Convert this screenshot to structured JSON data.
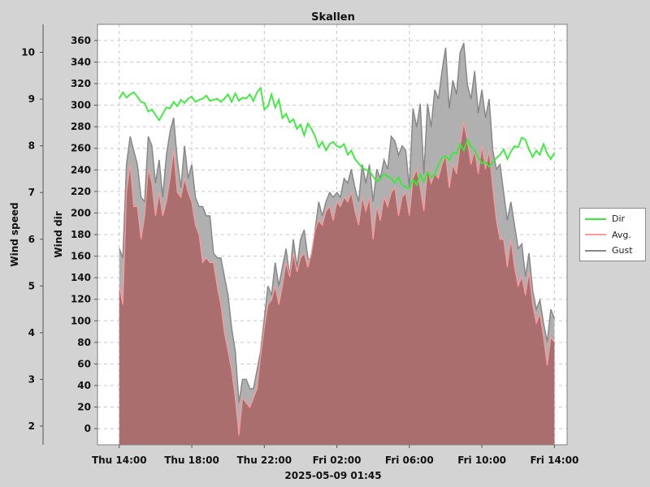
{
  "chart_data": {
    "type": "area",
    "title": "Skallen",
    "subtitle": "2025-05-09 01:45",
    "left_axis_label": "Wind speed",
    "right_axis_label": "Wind dir",
    "speed_ticks": [
      2,
      3,
      4,
      5,
      6,
      7,
      8,
      9,
      10
    ],
    "speed_ylim": [
      1.6,
      10.6
    ],
    "dir_ticks": [
      0,
      20,
      40,
      60,
      80,
      100,
      120,
      140,
      160,
      180,
      200,
      220,
      240,
      260,
      280,
      300,
      320,
      340,
      360
    ],
    "dir_ylim": [
      -15,
      375
    ],
    "x_ticks": [
      "Thu 14:00",
      "Thu 18:00",
      "Thu 22:00",
      "Fri 02:00",
      "Fri 06:00",
      "Fri 10:00",
      "Fri 14:00"
    ],
    "x_tick_hours": [
      0,
      4,
      8,
      12,
      16,
      20,
      24
    ],
    "x_range_hours": [
      -1.2,
      24.7
    ],
    "grid": true,
    "legend_position": "right",
    "colors": {
      "dir": "#33ee33",
      "avg": "#ff9999",
      "avg_fill": "#aa6e6e",
      "gust": "#888888",
      "gust_fill": "#b0b0b0"
    },
    "series": [
      {
        "name": "Dir",
        "x": [
          0.0,
          0.2,
          0.4,
          0.6,
          0.8,
          1.0,
          1.2,
          1.4,
          1.6,
          1.8,
          2.0,
          2.2,
          2.4,
          2.6,
          2.8,
          3.0,
          3.2,
          3.4,
          3.6,
          3.8,
          4.0,
          4.2,
          4.4,
          4.6,
          4.8,
          5.0,
          5.2,
          5.4,
          5.6,
          5.8,
          6.0,
          6.2,
          6.4,
          6.6,
          6.8,
          7.0,
          7.2,
          7.4,
          7.6,
          7.8,
          8.0,
          8.2,
          8.4,
          8.6,
          8.8,
          9.0,
          9.2,
          9.4,
          9.6,
          9.8,
          10.0,
          10.2,
          10.4,
          10.6,
          10.8,
          11.0,
          11.2,
          11.4,
          11.6,
          11.8,
          12.0,
          12.2,
          12.4,
          12.6,
          12.8,
          13.0,
          13.2,
          13.4,
          13.6,
          13.8,
          14.0,
          14.2,
          14.4,
          14.6,
          14.8,
          15.0,
          15.2,
          15.4,
          15.6,
          15.8,
          16.0,
          16.2,
          16.4,
          16.6,
          16.8,
          17.0,
          17.2,
          17.4,
          17.6,
          17.8,
          18.0,
          18.2,
          18.4,
          18.6,
          18.8,
          19.0,
          19.2,
          19.4,
          19.6,
          19.8,
          20.0,
          20.2,
          20.4,
          20.6,
          20.8,
          21.0,
          21.2,
          21.4,
          21.6,
          21.8,
          22.0,
          22.2,
          22.4,
          22.6,
          22.8,
          23.0,
          23.2,
          23.4,
          23.6,
          23.8,
          24.0
        ],
        "values": [
          306,
          312,
          307,
          310,
          312,
          308,
          303,
          302,
          294,
          296,
          291,
          286,
          292,
          298,
          297,
          303,
          299,
          305,
          302,
          306,
          308,
          303,
          305,
          306,
          309,
          304,
          305,
          306,
          303,
          306,
          310,
          303,
          311,
          304,
          307,
          306,
          310,
          304,
          312,
          316,
          296,
          299,
          310,
          298,
          305,
          288,
          292,
          284,
          287,
          278,
          282,
          272,
          283,
          278,
          271,
          261,
          266,
          258,
          264,
          266,
          262,
          261,
          264,
          254,
          258,
          250,
          246,
          242,
          240,
          239,
          234,
          229,
          232,
          236,
          234,
          232,
          228,
          233,
          226,
          224,
          223,
          231,
          226,
          236,
          229,
          238,
          233,
          236,
          245,
          251,
          253,
          249,
          256,
          255,
          264,
          258,
          268,
          262,
          258,
          252,
          246,
          247,
          243,
          247,
          251,
          254,
          259,
          250,
          257,
          262,
          261,
          270,
          268,
          259,
          252,
          258,
          254,
          264,
          255,
          250,
          256
        ],
        "units": "degrees"
      },
      {
        "name": "Avg.",
        "x": [
          0.0,
          0.2,
          0.4,
          0.6,
          0.8,
          1.0,
          1.2,
          1.4,
          1.6,
          1.8,
          2.0,
          2.2,
          2.4,
          2.6,
          2.8,
          3.0,
          3.2,
          3.4,
          3.6,
          3.8,
          4.0,
          4.2,
          4.4,
          4.6,
          4.8,
          5.0,
          5.2,
          5.4,
          5.6,
          5.8,
          6.0,
          6.2,
          6.4,
          6.6,
          6.8,
          7.0,
          7.2,
          7.4,
          7.6,
          7.8,
          8.0,
          8.2,
          8.4,
          8.6,
          8.8,
          9.0,
          9.2,
          9.4,
          9.6,
          9.8,
          10.0,
          10.2,
          10.4,
          10.6,
          10.8,
          11.0,
          11.2,
          11.4,
          11.6,
          11.8,
          12.0,
          12.2,
          12.4,
          12.6,
          12.8,
          13.0,
          13.2,
          13.4,
          13.6,
          13.8,
          14.0,
          14.2,
          14.4,
          14.6,
          14.8,
          15.0,
          15.2,
          15.4,
          15.6,
          15.8,
          16.0,
          16.2,
          16.4,
          16.6,
          16.8,
          17.0,
          17.2,
          17.4,
          17.6,
          17.8,
          18.0,
          18.2,
          18.4,
          18.6,
          18.8,
          19.0,
          19.2,
          19.4,
          19.6,
          19.8,
          20.0,
          20.2,
          20.4,
          20.6,
          20.8,
          21.0,
          21.2,
          21.4,
          21.6,
          21.8,
          22.0,
          22.2,
          22.4,
          22.6,
          22.8,
          23.0,
          23.2,
          23.4,
          23.6,
          23.8,
          24.0
        ],
        "values": [
          5.0,
          4.6,
          7.0,
          7.6,
          6.7,
          6.7,
          6.0,
          6.5,
          7.5,
          7.2,
          6.5,
          7.0,
          6.5,
          6.8,
          7.3,
          7.9,
          7.0,
          6.9,
          7.3,
          7.0,
          6.8,
          6.3,
          6.1,
          5.5,
          5.6,
          5.5,
          5.5,
          5.0,
          4.6,
          4.0,
          3.6,
          3.2,
          2.6,
          1.8,
          2.6,
          2.5,
          2.4,
          2.6,
          2.8,
          3.5,
          4.1,
          4.6,
          4.7,
          5.0,
          4.6,
          5.0,
          5.5,
          5.2,
          5.7,
          5.3,
          5.6,
          5.7,
          5.4,
          5.7,
          6.2,
          6.4,
          6.3,
          6.6,
          6.7,
          6.4,
          6.8,
          6.7,
          6.9,
          6.8,
          7.0,
          6.6,
          6.3,
          6.9,
          6.6,
          6.9,
          6.0,
          6.7,
          6.4,
          6.9,
          6.7,
          7.0,
          7.1,
          6.5,
          6.9,
          7.0,
          6.5,
          7.3,
          7.5,
          7.1,
          6.6,
          7.5,
          7.2,
          7.4,
          7.3,
          7.6,
          7.8,
          7.1,
          7.6,
          7.4,
          8.0,
          8.5,
          8.1,
          7.6,
          7.9,
          7.4,
          8.0,
          7.5,
          7.9,
          7.1,
          6.4,
          6.0,
          6.0,
          5.4,
          6.0,
          5.4,
          5.0,
          5.2,
          4.8,
          5.3,
          4.6,
          4.2,
          4.4,
          3.9,
          3.3,
          3.9,
          3.8
        ],
        "units": "wind speed"
      },
      {
        "name": "Gust",
        "x": [
          0.0,
          0.2,
          0.4,
          0.6,
          0.8,
          1.0,
          1.2,
          1.4,
          1.6,
          1.8,
          2.0,
          2.2,
          2.4,
          2.6,
          2.8,
          3.0,
          3.2,
          3.4,
          3.6,
          3.8,
          4.0,
          4.2,
          4.4,
          4.6,
          4.8,
          5.0,
          5.2,
          5.4,
          5.6,
          5.8,
          6.0,
          6.2,
          6.4,
          6.6,
          6.8,
          7.0,
          7.2,
          7.4,
          7.6,
          7.8,
          8.0,
          8.2,
          8.4,
          8.6,
          8.8,
          9.0,
          9.2,
          9.4,
          9.6,
          9.8,
          10.0,
          10.2,
          10.4,
          10.6,
          10.8,
          11.0,
          11.2,
          11.4,
          11.6,
          11.8,
          12.0,
          12.2,
          12.4,
          12.6,
          12.8,
          13.0,
          13.2,
          13.4,
          13.6,
          13.8,
          14.0,
          14.2,
          14.4,
          14.6,
          14.8,
          15.0,
          15.2,
          15.4,
          15.6,
          15.8,
          16.0,
          16.2,
          16.4,
          16.6,
          16.8,
          17.0,
          17.2,
          17.4,
          17.6,
          17.8,
          18.0,
          18.2,
          18.4,
          18.6,
          18.8,
          19.0,
          19.2,
          19.4,
          19.6,
          19.8,
          20.0,
          20.2,
          20.4,
          20.6,
          20.8,
          21.0,
          21.2,
          21.4,
          21.6,
          21.8,
          22.0,
          22.2,
          22.4,
          22.6,
          22.8,
          23.0,
          23.2,
          23.4,
          23.6,
          23.8,
          24.0
        ],
        "values": [
          5.8,
          5.6,
          7.6,
          8.2,
          7.9,
          7.6,
          6.9,
          6.8,
          8.2,
          8.0,
          7.2,
          7.7,
          6.9,
          7.8,
          8.3,
          8.6,
          7.7,
          7.1,
          8.0,
          7.3,
          7.6,
          6.9,
          6.7,
          6.7,
          6.5,
          6.5,
          5.7,
          5.6,
          5.6,
          5.2,
          4.8,
          4.1,
          3.6,
          2.5,
          3.0,
          3.0,
          2.8,
          2.8,
          3.2,
          3.6,
          4.3,
          5.0,
          4.8,
          5.5,
          5.0,
          5.4,
          5.8,
          5.2,
          6.0,
          5.4,
          6.0,
          6.2,
          5.6,
          5.5,
          6.2,
          6.8,
          6.5,
          6.8,
          7.0,
          6.9,
          7.0,
          6.9,
          7.3,
          7.2,
          7.5,
          7.1,
          6.8,
          7.6,
          7.2,
          7.6,
          6.8,
          7.5,
          7.3,
          7.7,
          7.5,
          8.2,
          8.1,
          7.8,
          8.0,
          7.9,
          7.1,
          8.8,
          8.4,
          8.9,
          7.4,
          8.9,
          8.4,
          9.2,
          9.0,
          9.6,
          10.1,
          8.8,
          9.4,
          9.1,
          10.0,
          10.2,
          9.3,
          9.0,
          9.6,
          8.7,
          9.2,
          8.6,
          9.0,
          7.9,
          7.5,
          7.6,
          7.0,
          6.4,
          6.8,
          6.3,
          5.8,
          5.9,
          5.2,
          5.7,
          4.9,
          4.5,
          4.7,
          4.2,
          3.8,
          4.5,
          4.3
        ],
        "units": "wind speed"
      }
    ]
  }
}
